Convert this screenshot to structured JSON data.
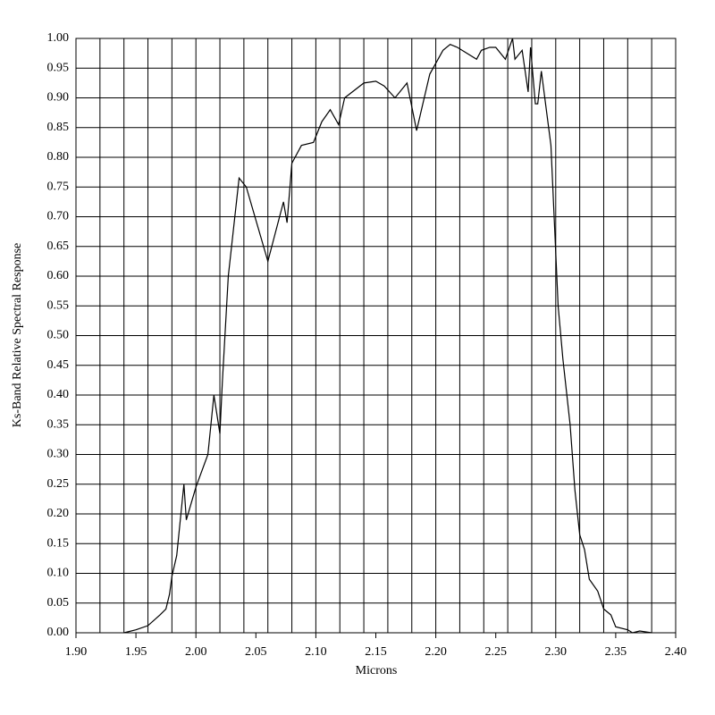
{
  "chart_data": {
    "type": "line",
    "xlabel": "Microns",
    "ylabel": "Ks-Band Relative Spectral Response",
    "x": [
      1.94,
      1.95,
      1.96,
      1.97,
      1.975,
      1.978,
      1.98,
      1.984,
      1.986,
      1.99,
      1.992,
      2.0,
      2.01,
      2.015,
      2.02,
      2.022,
      2.027,
      2.036,
      2.042,
      2.06,
      2.073,
      2.076,
      2.08,
      2.088,
      2.098,
      2.105,
      2.112,
      2.119,
      2.124,
      2.14,
      2.15,
      2.157,
      2.166,
      2.176,
      2.184,
      2.195,
      2.206,
      2.212,
      2.218,
      2.234,
      2.238,
      2.245,
      2.25,
      2.258,
      2.264,
      2.266,
      2.272,
      2.277,
      2.279,
      2.283,
      2.285,
      2.288,
      2.296,
      2.302,
      2.306,
      2.312,
      2.316,
      2.32,
      2.324,
      2.328,
      2.335,
      2.34,
      2.346,
      2.35,
      2.36,
      2.364,
      2.37,
      2.38
    ],
    "series": [
      {
        "color": "#000000",
        "values": [
          0.0,
          0.005,
          0.012,
          0.03,
          0.04,
          0.065,
          0.095,
          0.13,
          0.17,
          0.25,
          0.19,
          0.245,
          0.3,
          0.4,
          0.335,
          0.42,
          0.6,
          0.765,
          0.75,
          0.625,
          0.725,
          0.69,
          0.79,
          0.82,
          0.825,
          0.86,
          0.88,
          0.855,
          0.9,
          0.925,
          0.928,
          0.92,
          0.9,
          0.925,
          0.845,
          0.94,
          0.98,
          0.99,
          0.985,
          0.965,
          0.98,
          0.985,
          0.985,
          0.965,
          1.0,
          0.965,
          0.98,
          0.91,
          0.985,
          0.89,
          0.89,
          0.945,
          0.82,
          0.55,
          0.46,
          0.35,
          0.24,
          0.165,
          0.14,
          0.09,
          0.07,
          0.04,
          0.03,
          0.01,
          0.005,
          0.0,
          0.003,
          0.0
        ]
      }
    ],
    "xlim": [
      1.9,
      2.4
    ],
    "ylim": [
      0,
      1
    ],
    "xticks": [
      {
        "value": 1.9,
        "label": "1.90"
      },
      {
        "value": 1.95,
        "label": "1.95"
      },
      {
        "value": 2.0,
        "label": "2.00"
      },
      {
        "value": 2.05,
        "label": "2.05"
      },
      {
        "value": 2.1,
        "label": "2.10"
      },
      {
        "value": 2.15,
        "label": "2.15"
      },
      {
        "value": 2.2,
        "label": "2.20"
      },
      {
        "value": 2.25,
        "label": "2.25"
      },
      {
        "value": 2.3,
        "label": "2.30"
      },
      {
        "value": 2.35,
        "label": "2.35"
      },
      {
        "value": 2.4,
        "label": "2.40"
      }
    ],
    "xgrid": [
      1.92,
      1.94,
      1.96,
      1.98,
      2.0,
      2.02,
      2.04,
      2.06,
      2.08,
      2.1,
      2.12,
      2.14,
      2.16,
      2.18,
      2.2,
      2.22,
      2.24,
      2.26,
      2.28,
      2.3,
      2.32,
      2.34,
      2.36,
      2.38
    ],
    "yticks": [
      {
        "value": 0,
        "label": "0.00"
      },
      {
        "value": 0.05,
        "label": "0.05"
      },
      {
        "value": 0.1,
        "label": "0.10"
      },
      {
        "value": 0.15,
        "label": "0.15"
      },
      {
        "value": 0.2,
        "label": "0.20"
      },
      {
        "value": 0.25,
        "label": "0.25"
      },
      {
        "value": 0.3,
        "label": "0.30"
      },
      {
        "value": 0.35,
        "label": "0.35"
      },
      {
        "value": 0.4,
        "label": "0.40"
      },
      {
        "value": 0.45,
        "label": "0.45"
      },
      {
        "value": 0.5,
        "label": "0.50"
      },
      {
        "value": 0.55,
        "label": "0.55"
      },
      {
        "value": 0.6,
        "label": "0.60"
      },
      {
        "value": 0.65,
        "label": "0.65"
      },
      {
        "value": 0.7,
        "label": "0.70"
      },
      {
        "value": 0.75,
        "label": "0.75"
      },
      {
        "value": 0.8,
        "label": "0.80"
      },
      {
        "value": 0.85,
        "label": "0.85"
      },
      {
        "value": 0.9,
        "label": "0.90"
      },
      {
        "value": 0.95,
        "label": "0.95"
      },
      {
        "value": 1,
        "label": "1.00"
      }
    ],
    "grid": true
  }
}
